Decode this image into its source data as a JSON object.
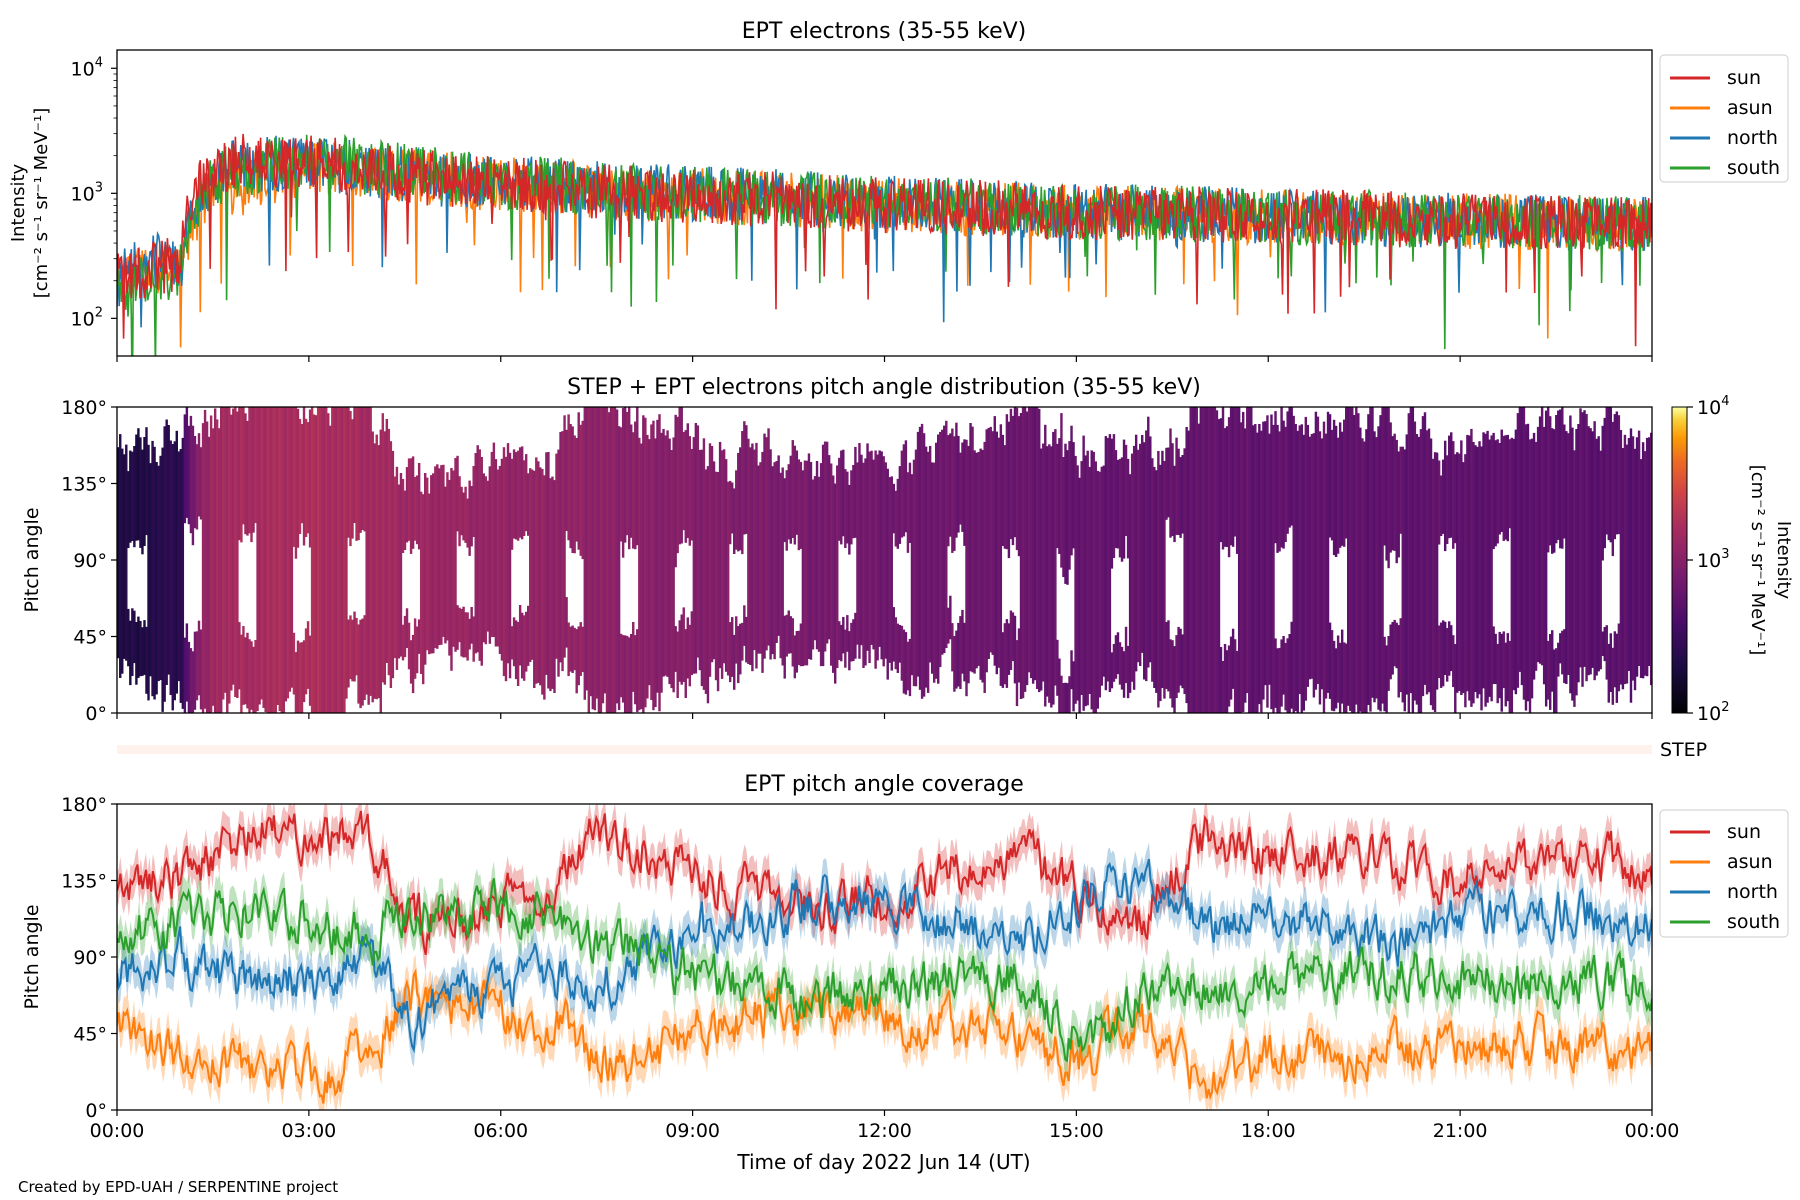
{
  "figure": {
    "credit": "Created by EPD-UAH / SERPENTINE project",
    "xlabel": "Time of day 2022 Jun 14 (UT)",
    "time_ticks": [
      "00:00",
      "03:00",
      "06:00",
      "09:00",
      "12:00",
      "15:00",
      "18:00",
      "21:00",
      "00:00"
    ]
  },
  "colors": {
    "sun": "#d62728",
    "asun": "#ff7f0e",
    "north": "#1f77b4",
    "south": "#2ca02c"
  },
  "chart_data": [
    {
      "type": "line",
      "title": "EPT electrons (35-55 keV)",
      "ylabel": "Intensity",
      "yunits": "[cm⁻² s⁻¹ sr⁻¹ MeV⁻¹]",
      "yscale": "log",
      "ylim": [
        50,
        14000
      ],
      "yticks": [
        {
          "value": 100,
          "base": "10",
          "exp": "2"
        },
        {
          "value": 1000,
          "base": "10",
          "exp": "3"
        },
        {
          "value": 10000,
          "base": "10",
          "exp": "4"
        }
      ],
      "x_hours": [
        0,
        0.5,
        1,
        1.2,
        1.5,
        2,
        3,
        4,
        5,
        6,
        7,
        8,
        9,
        10,
        11,
        12,
        13,
        14,
        15,
        16,
        17,
        18,
        19,
        20,
        21,
        22,
        23,
        24
      ],
      "legend": "upper right, outside",
      "series": [
        {
          "name": "sun",
          "values": [
            200,
            250,
            280,
            1000,
            1500,
            1800,
            1800,
            1500,
            1300,
            1200,
            1100,
            1000,
            950,
            900,
            850,
            800,
            780,
            750,
            700,
            700,
            680,
            650,
            650,
            620,
            600,
            600,
            580,
            550
          ]
        },
        {
          "name": "asun",
          "values": [
            180,
            250,
            250,
            500,
            1000,
            1200,
            1600,
            1500,
            1300,
            1200,
            1100,
            1000,
            950,
            900,
            850,
            800,
            760,
            740,
            700,
            690,
            670,
            650,
            640,
            620,
            600,
            590,
            570,
            550
          ]
        },
        {
          "name": "north",
          "values": [
            200,
            300,
            250,
            800,
            1400,
            1700,
            1800,
            1500,
            1300,
            1250,
            1150,
            1050,
            1000,
            950,
            900,
            850,
            800,
            750,
            720,
            700,
            680,
            660,
            640,
            620,
            600,
            590,
            570,
            560
          ]
        },
        {
          "name": "south",
          "values": [
            150,
            200,
            250,
            700,
            1300,
            1600,
            1900,
            1600,
            1400,
            1250,
            1150,
            1050,
            980,
            930,
            880,
            830,
            800,
            760,
            720,
            700,
            680,
            660,
            640,
            620,
            600,
            590,
            580,
            560
          ]
        }
      ]
    },
    {
      "type": "heatmap",
      "title": "STEP + EPT electrons pitch angle distribution (35-55 keV)",
      "ylabel": "Pitch angle",
      "ylim": [
        0,
        180
      ],
      "yticks": [
        "0°",
        "45°",
        "90°",
        "135°",
        "180°"
      ],
      "colorbar": {
        "label": "Intensity",
        "units": "[cm⁻² s⁻¹ sr⁻¹ MeV⁻¹]",
        "scale": "log",
        "range": [
          100,
          10000
        ],
        "ticks": [
          {
            "base": "10",
            "exp": "2"
          },
          {
            "base": "10",
            "exp": "3"
          },
          {
            "base": "10",
            "exp": "4"
          }
        ],
        "colormap": "inferno"
      },
      "x_hours": [
        0,
        1,
        1.5,
        3,
        4.5,
        6,
        7.5,
        9,
        10.5,
        12,
        13.5,
        15,
        16.5,
        18,
        19.5,
        21,
        22.5,
        24
      ],
      "intensity": [
        200,
        250,
        1500,
        1700,
        1400,
        1200,
        1100,
        950,
        800,
        700,
        650,
        600,
        580,
        560,
        550,
        540,
        520,
        500
      ],
      "step_label": "STEP"
    },
    {
      "type": "line",
      "title": "EPT pitch angle coverage",
      "ylabel": "Pitch angle",
      "ylim": [
        0,
        180
      ],
      "yticks": [
        "0°",
        "45°",
        "90°",
        "135°",
        "180°"
      ],
      "legend": "upper right, outside",
      "x_hours": [
        0,
        1,
        2,
        3,
        4,
        4.5,
        5,
        6,
        7,
        7.5,
        8,
        9,
        10,
        11,
        12,
        13,
        14,
        15,
        15.5,
        16,
        17,
        18,
        19,
        20,
        21,
        22,
        23,
        24
      ],
      "series": [
        {
          "name": "sun",
          "values": [
            130,
            140,
            160,
            165,
            160,
            110,
            110,
            120,
            140,
            165,
            155,
            140,
            125,
            120,
            125,
            140,
            150,
            130,
            115,
            110,
            160,
            150,
            150,
            145,
            135,
            140,
            150,
            140
          ]
        },
        {
          "name": "asun",
          "values": [
            50,
            30,
            25,
            20,
            30,
            70,
            60,
            60,
            50,
            30,
            30,
            45,
            55,
            60,
            55,
            50,
            40,
            30,
            40,
            50,
            20,
            30,
            30,
            35,
            40,
            40,
            35,
            40
          ]
        },
        {
          "name": "north",
          "values": [
            80,
            90,
            75,
            80,
            85,
            55,
            60,
            75,
            80,
            70,
            85,
            105,
            110,
            125,
            120,
            110,
            100,
            120,
            140,
            130,
            110,
            110,
            105,
            100,
            110,
            120,
            115,
            110
          ]
        },
        {
          "name": "south",
          "values": [
            100,
            110,
            115,
            110,
            100,
            120,
            115,
            120,
            110,
            95,
            95,
            80,
            70,
            65,
            70,
            75,
            80,
            40,
            50,
            70,
            70,
            75,
            80,
            80,
            75,
            75,
            80,
            75
          ]
        }
      ]
    }
  ]
}
